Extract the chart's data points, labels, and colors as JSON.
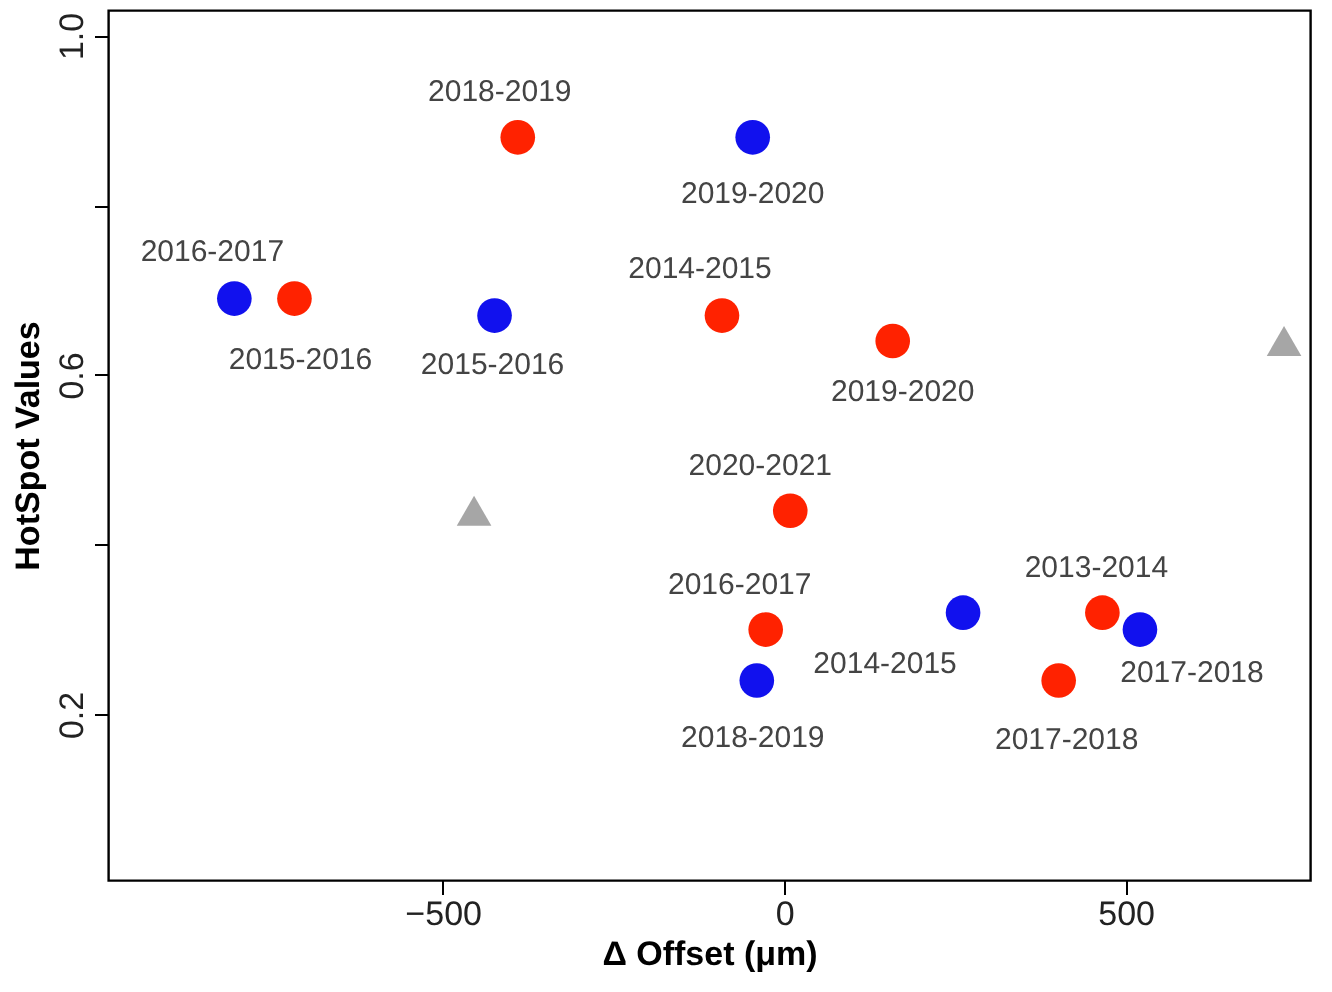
{
  "chart_data": {
    "type": "scatter",
    "xlabel": "Δ Offset (μm)",
    "ylabel": "HotSpot Values",
    "xlim": [
      -990,
      770
    ],
    "ylim": [
      0.005,
      1.03
    ],
    "xticks": [
      -500,
      0,
      500
    ],
    "yticks": [
      0.2,
      {
        "value": 0.4,
        "label": null
      },
      0.6,
      {
        "value": 0.8,
        "label": null
      },
      {
        "value": 1.0,
        "label": "1.0"
      }
    ],
    "grid": false,
    "series": [
      {
        "color": "#1111ee",
        "marker": "circle",
        "x": [
          -805,
          -46,
          -424,
          262,
          521,
          -40
        ],
        "values": [
          0.69,
          0.88,
          0.67,
          0.32,
          0.3,
          0.24
        ]
      },
      {
        "color": "#ff2200",
        "marker": "circle",
        "x": [
          -717,
          -390,
          -91,
          159,
          9,
          -27,
          466,
          402
        ],
        "values": [
          0.69,
          0.88,
          0.67,
          0.64,
          0.44,
          0.3,
          0.32,
          0.24
        ]
      },
      {
        "color": "#a6a6a6",
        "marker": "triangle",
        "x": [
          -454,
          732
        ],
        "values": [
          0.44,
          0.64
        ]
      }
    ],
    "annotations": [
      {
        "text": "2016-2017",
        "x": -805,
        "y": 0.69
      },
      {
        "text": "2015-2016",
        "x": -717,
        "y": 0.69
      },
      {
        "text": "2018-2019",
        "x": -390,
        "y": 0.88
      },
      {
        "text": "2019-2020",
        "x": -46,
        "y": 0.88
      },
      {
        "text": "2014-2015",
        "x": -91,
        "y": 0.67
      },
      {
        "text": "2015-2016",
        "x": -424,
        "y": 0.67
      },
      {
        "text": "2019-2020",
        "x": 159,
        "y": 0.64
      },
      {
        "text": "2020-2021",
        "x": 9,
        "y": 0.44
      },
      {
        "text": "2016-2017",
        "x": -27,
        "y": 0.3
      },
      {
        "text": "2013-2014",
        "x": 466,
        "y": 0.32
      },
      {
        "text": "2014-2015",
        "x": 262,
        "y": 0.32
      },
      {
        "text": "2017-2018",
        "x": 521,
        "y": 0.3
      },
      {
        "text": "2018-2019",
        "x": -40,
        "y": 0.24
      },
      {
        "text": "2017-2018",
        "x": 402,
        "y": 0.24
      }
    ]
  }
}
